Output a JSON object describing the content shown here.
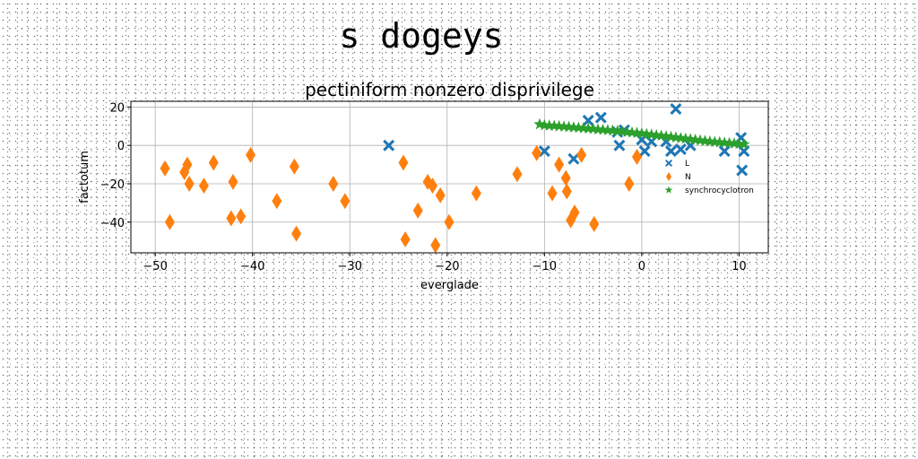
{
  "suptitle": "s dogeys",
  "chart_data": {
    "type": "scatter",
    "title": "pectiniform nonzero disprivilege",
    "xlabel": "everglade",
    "ylabel": "factotum",
    "xlim": [
      -52.5,
      13
    ],
    "ylim": [
      -56,
      23
    ],
    "xticks": [
      -50,
      -40,
      -30,
      -20,
      -10,
      0,
      10
    ],
    "yticks": [
      -40,
      -20,
      0,
      20
    ],
    "grid": true,
    "legend_position": "right",
    "series": [
      {
        "name": "L",
        "marker": "x",
        "color": "#1f77b4",
        "points": [
          [
            -26,
            0
          ],
          [
            -10,
            -3
          ],
          [
            -7,
            -7
          ],
          [
            -5.5,
            13
          ],
          [
            -4.2,
            14.5
          ],
          [
            -2.5,
            7
          ],
          [
            -2.3,
            0
          ],
          [
            -1.8,
            8
          ],
          [
            0,
            3
          ],
          [
            0.3,
            -3
          ],
          [
            1,
            2
          ],
          [
            2.5,
            2
          ],
          [
            3,
            -3
          ],
          [
            3.5,
            19
          ],
          [
            4,
            -2
          ],
          [
            5,
            0
          ],
          [
            8.5,
            -3
          ],
          [
            10.2,
            4
          ],
          [
            10.5,
            -3
          ],
          [
            10.3,
            -13
          ]
        ]
      },
      {
        "name": "N",
        "marker": "diamond",
        "color": "#ff7f0e",
        "points": [
          [
            -49,
            -12
          ],
          [
            -48.5,
            -40
          ],
          [
            -47,
            -14
          ],
          [
            -46.7,
            -10
          ],
          [
            -46.5,
            -20
          ],
          [
            -45,
            -21
          ],
          [
            -44,
            -9
          ],
          [
            -42.2,
            -38
          ],
          [
            -42,
            -19
          ],
          [
            -41.2,
            -37
          ],
          [
            -40.2,
            -5
          ],
          [
            -37.5,
            -29
          ],
          [
            -35.7,
            -11
          ],
          [
            -35.5,
            -46
          ],
          [
            -31.7,
            -20
          ],
          [
            -30.5,
            -29
          ],
          [
            -24.5,
            -9
          ],
          [
            -24.3,
            -49
          ],
          [
            -23,
            -34
          ],
          [
            -22,
            -19
          ],
          [
            -21.5,
            -21
          ],
          [
            -21.2,
            -52
          ],
          [
            -20.7,
            -26
          ],
          [
            -19.8,
            -40
          ],
          [
            -17,
            -25
          ],
          [
            -12.8,
            -15
          ],
          [
            -10.8,
            -4
          ],
          [
            -9.2,
            -25
          ],
          [
            -8.5,
            -10
          ],
          [
            -7.8,
            -17
          ],
          [
            -7.7,
            -24
          ],
          [
            -7.3,
            -39
          ],
          [
            -6.9,
            -35
          ],
          [
            -6.2,
            -5
          ],
          [
            -4.9,
            -41
          ],
          [
            -1.3,
            -20
          ],
          [
            -0.5,
            -6
          ]
        ]
      },
      {
        "name": "synchrocyclotron",
        "marker": "star",
        "color": "#2ca02c",
        "points": [
          [
            -10.5,
            11
          ],
          [
            -10,
            10.5
          ],
          [
            -9.5,
            10.3
          ],
          [
            -9,
            10.2
          ],
          [
            -8.5,
            10
          ],
          [
            -8,
            9.8
          ],
          [
            -7.5,
            9.6
          ],
          [
            -7,
            9.4
          ],
          [
            -6.5,
            9.2
          ],
          [
            -6,
            9
          ],
          [
            -5.5,
            8.8
          ],
          [
            -5,
            8.6
          ],
          [
            -4.5,
            8.3
          ],
          [
            -4,
            8.1
          ],
          [
            -3.5,
            7.9
          ],
          [
            -3,
            7.7
          ],
          [
            -2.5,
            7.5
          ],
          [
            -2,
            7.2
          ],
          [
            -1.5,
            7
          ],
          [
            -1,
            6.7
          ],
          [
            -0.5,
            6.5
          ],
          [
            0,
            6.2
          ],
          [
            0.5,
            5.9
          ],
          [
            1,
            5.6
          ],
          [
            1.5,
            5.3
          ],
          [
            2,
            5
          ],
          [
            2.5,
            4.7
          ],
          [
            3,
            4.4
          ],
          [
            3.5,
            4.1
          ],
          [
            4,
            3.8
          ],
          [
            4.5,
            3.5
          ],
          [
            5,
            3.2
          ],
          [
            5.5,
            2.9
          ],
          [
            6,
            2.6
          ],
          [
            6.5,
            2.3
          ],
          [
            7,
            2
          ],
          [
            7.5,
            1.8
          ],
          [
            8,
            1.6
          ],
          [
            8.5,
            1.4
          ],
          [
            9,
            1.2
          ],
          [
            9.5,
            1
          ],
          [
            10,
            0.8
          ],
          [
            10.5,
            0.6
          ]
        ]
      }
    ]
  }
}
